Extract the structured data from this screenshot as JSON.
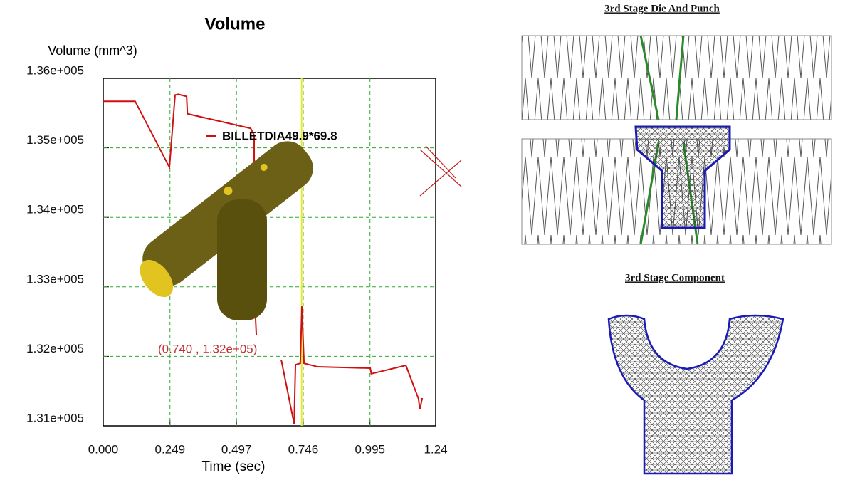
{
  "chart_data": {
    "type": "line",
    "title": "Volume",
    "y_label": "Volume (mm^3)",
    "x_label": "Time (sec)",
    "x": [
      0,
      0.119,
      0.247,
      0.268,
      0.28,
      0.311,
      0.314,
      0.55,
      0.563,
      0.563,
      0.571,
      0.6,
      0.664,
      0.712,
      0.717,
      0.735,
      0.741,
      0.749,
      0.8,
      0.996,
      1.0,
      1.129,
      1.176,
      1.181,
      1.19
    ],
    "series": [
      {
        "name": "BILLETDIA49.9*69.8",
        "color": "#d01010",
        "values": [
          135670,
          135670,
          134720,
          135760,
          135770,
          135740,
          135490,
          135280,
          135180,
          132980,
          132310,
          null,
          131950,
          131030,
          131880,
          131900,
          132720,
          131900,
          131850,
          131830,
          131750,
          131870,
          131390,
          131240,
          131400
        ]
      }
    ],
    "xlim": [
      0,
      1.24
    ],
    "xticks": [
      {
        "value": 0,
        "label": "0.000"
      },
      0.249,
      0.497,
      0.746,
      0.995,
      1.24
    ],
    "ylim": [
      131000,
      136000
    ],
    "yticks": [
      {
        "value": 131000,
        "label": "1.31e+005"
      },
      {
        "value": 132000,
        "label": "1.32e+005"
      },
      {
        "value": 133000,
        "label": "1.33e+005"
      },
      {
        "value": 134000,
        "label": "1.34e+005"
      },
      {
        "value": 135000,
        "label": "1.35e+005"
      },
      {
        "value": 136000,
        "label": "1.36e+005"
      }
    ],
    "grid": true,
    "grid_color": "#2eaa2e",
    "cursor_x": 0.74,
    "cursor_color": "#e8e830",
    "annotation": "(0.740 , 1.32e+05)"
  },
  "captions": [
    "3rd Stage Die And Punch",
    "3rd Stage Component"
  ]
}
